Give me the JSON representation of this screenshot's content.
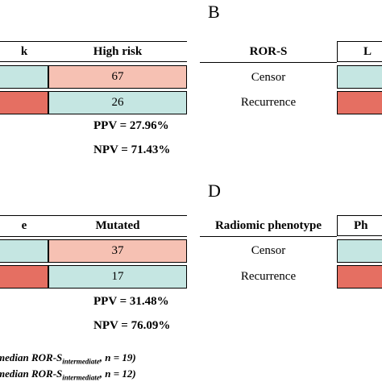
{
  "colors": {
    "teal": "#c5e6e2",
    "salmon": "#f6c1b3",
    "red": "#e56f62"
  },
  "panel_letters": {
    "b": "B",
    "d": "D"
  },
  "top_left": {
    "col1_header_fragment": "k",
    "col2_header": "High risk",
    "values": [
      "67",
      "26"
    ],
    "ppv": "PPV = 27.96%",
    "npv": "NPV = 71.43%"
  },
  "top_right": {
    "header": "ROR-S",
    "col_header_fragment": "L",
    "rows": [
      "Censor",
      "Recurrence"
    ]
  },
  "bottom_left": {
    "col1_header_fragment": "e",
    "col2_header": "Mutated",
    "values": [
      "37",
      "17"
    ],
    "ppv": "PPV = 31.48%",
    "npv": "NPV = 76.09%"
  },
  "bottom_right": {
    "header": "Radiomic phenotype",
    "col_header_fragment": "Ph",
    "rows": [
      "Censor",
      "Recurrence"
    ]
  },
  "footnotes": [
    {
      "pre": "median ROR-S",
      "sub": "intermediate",
      "post": ", n = 19)"
    },
    {
      "pre": "median ROR-S",
      "sub": "intermediate",
      "post": ", n = 12)"
    }
  ]
}
